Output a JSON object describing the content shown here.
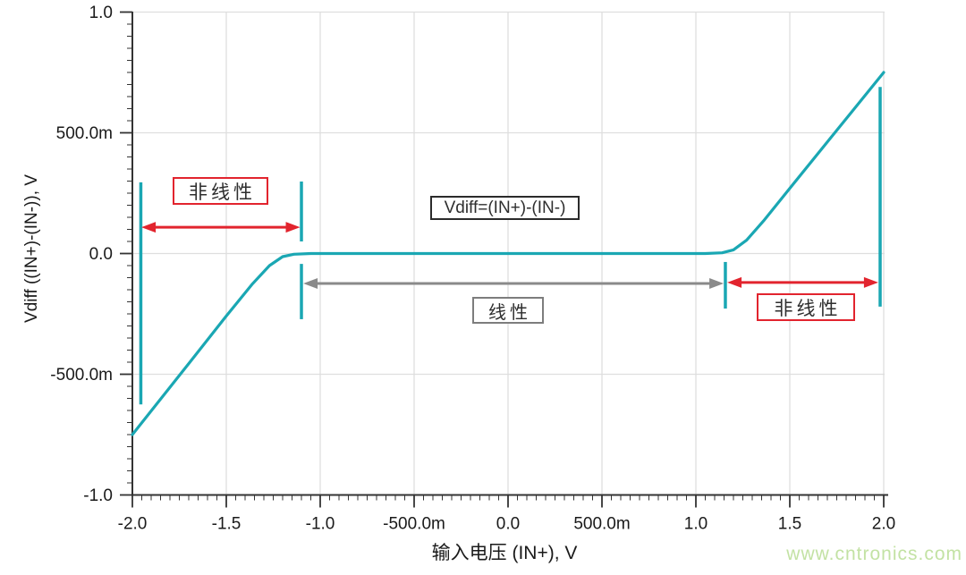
{
  "watermark": "www.cntronics.com",
  "colors": {
    "trace": "#1aa7b3",
    "arrow_red": "#e2242e",
    "arrow_gray": "#8a8a8a",
    "grid": "#dedede",
    "axis": "#333333",
    "text": "#1a1a1a",
    "watermark": "#c3e2a4"
  },
  "chart_data": {
    "type": "line",
    "title": "",
    "xlabel": "输入电压 (IN+), V",
    "ylabel": "Vdiff ((IN+)-(IN-)), V",
    "xlim": [
      -2,
      2
    ],
    "ylim": [
      -1,
      1
    ],
    "grid": true,
    "legend": "none",
    "x_ticks": [
      {
        "v": -2,
        "label": "-2.0"
      },
      {
        "v": -1.5,
        "label": "-1.5"
      },
      {
        "v": -1,
        "label": "-1.0"
      },
      {
        "v": -0.5,
        "label": "-500.0m"
      },
      {
        "v": 0,
        "label": "0.0"
      },
      {
        "v": 0.5,
        "label": "500.0m"
      },
      {
        "v": 1,
        "label": "1.0"
      },
      {
        "v": 1.5,
        "label": "1.5"
      },
      {
        "v": 2,
        "label": "2.0"
      }
    ],
    "y_ticks": [
      {
        "v": 1,
        "label": "1.0"
      },
      {
        "v": 0.5,
        "label": "500.0m"
      },
      {
        "v": 0,
        "label": "0.0"
      },
      {
        "v": -0.5,
        "label": "-500.0m"
      },
      {
        "v": -1,
        "label": "-1.0"
      }
    ],
    "series": [
      {
        "name": "Vdiff=(IN+)-(IN-)",
        "color": "#1aa7b3",
        "points": [
          [
            -2.0,
            -0.75
          ],
          [
            -1.7,
            -0.456
          ],
          [
            -1.5,
            -0.259
          ],
          [
            -1.36,
            -0.125
          ],
          [
            -1.27,
            -0.05
          ],
          [
            -1.2,
            -0.013
          ],
          [
            -1.14,
            -0.003
          ],
          [
            -1.05,
            0.0
          ],
          [
            0.0,
            0.0
          ],
          [
            1.05,
            0.0
          ],
          [
            1.14,
            0.003
          ],
          [
            1.2,
            0.015
          ],
          [
            1.27,
            0.055
          ],
          [
            1.36,
            0.135
          ],
          [
            1.5,
            0.27
          ],
          [
            1.75,
            0.51
          ],
          [
            2.0,
            0.75
          ]
        ]
      }
    ],
    "cursor_markers": [
      {
        "x": -1.955,
        "y1": 0.295,
        "y2": -0.625
      },
      {
        "x": -1.1,
        "y1": 0.298,
        "y2": 0.05
      },
      {
        "x": -1.1,
        "y1": -0.043,
        "y2": -0.272
      },
      {
        "x": 1.157,
        "y1": -0.035,
        "y2": -0.228
      },
      {
        "x": 1.981,
        "y1": 0.69,
        "y2": -0.22
      }
    ],
    "range_arrows": [
      {
        "name": "nonlinear-left-arrow",
        "x1": -1.952,
        "x2": -1.107,
        "y": 0.109,
        "color": "#e2242e"
      },
      {
        "name": "linear-arrow",
        "x1": -1.09,
        "x2": 1.148,
        "y": -0.124,
        "color": "#8a8a8a"
      },
      {
        "name": "nonlinear-right-arrow",
        "x1": 1.167,
        "x2": 1.971,
        "y": -0.12,
        "color": "#e2242e"
      }
    ],
    "annotations": {
      "nonlinear_left": {
        "label": "非线性",
        "border": "#e2242e"
      },
      "formula": {
        "label": "Vdiff=(IN+)-(IN-)",
        "border": "#2b2b2b"
      },
      "linear": {
        "label": "线性",
        "border": "#7d7d7d"
      },
      "nonlinear_right": {
        "label": "非线性",
        "border": "#e2242e"
      }
    }
  }
}
